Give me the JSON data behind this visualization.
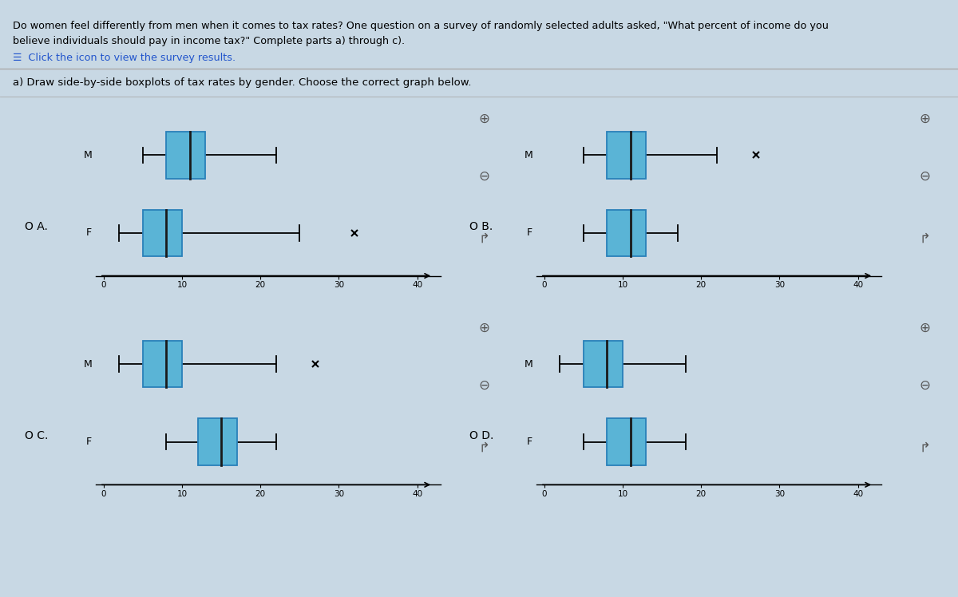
{
  "background_color": "#c8d8e4",
  "box_color": "#5ab4d6",
  "box_edge_color": "#2980b9",
  "text_color": "#000000",
  "plots": [
    {
      "label": "A",
      "radio_label": "O A.",
      "M": {
        "min": 5,
        "q1": 8,
        "med": 11,
        "q3": 13,
        "max": 22,
        "outliers": []
      },
      "F": {
        "min": 2,
        "q1": 5,
        "med": 8,
        "q3": 10,
        "max": 25,
        "outliers": [
          32
        ]
      }
    },
    {
      "label": "B",
      "radio_label": "O B.",
      "M": {
        "min": 5,
        "q1": 8,
        "med": 11,
        "q3": 13,
        "max": 22,
        "outliers": [
          27
        ]
      },
      "F": {
        "min": 5,
        "q1": 8,
        "med": 11,
        "q3": 13,
        "max": 17,
        "outliers": []
      }
    },
    {
      "label": "C",
      "radio_label": "O C.",
      "M": {
        "min": 2,
        "q1": 5,
        "med": 8,
        "q3": 10,
        "max": 22,
        "outliers": [
          27
        ]
      },
      "F": {
        "min": 8,
        "q1": 12,
        "med": 15,
        "q3": 17,
        "max": 22,
        "outliers": []
      }
    },
    {
      "label": "D",
      "radio_label": "O D.",
      "M": {
        "min": 2,
        "q1": 5,
        "med": 8,
        "q3": 10,
        "max": 18,
        "outliers": []
      },
      "F": {
        "min": 5,
        "q1": 8,
        "med": 11,
        "q3": 13,
        "max": 18,
        "outliers": []
      }
    }
  ],
  "xlim": [
    0,
    42
  ],
  "xticks": [
    0,
    10,
    20,
    30,
    40
  ],
  "title_line1": "Do women feel differently from men when it comes to tax rates? One question on a survey of randomly selected adults asked, \"What percent of income do you",
  "title_line2": "believe individuals should pay in income tax?\" Complete parts a) through c).",
  "subtitle": "Click the icon to view the survey results.",
  "question": "a) Draw side-by-side boxplots of tax rates by gender. Choose the correct graph below."
}
